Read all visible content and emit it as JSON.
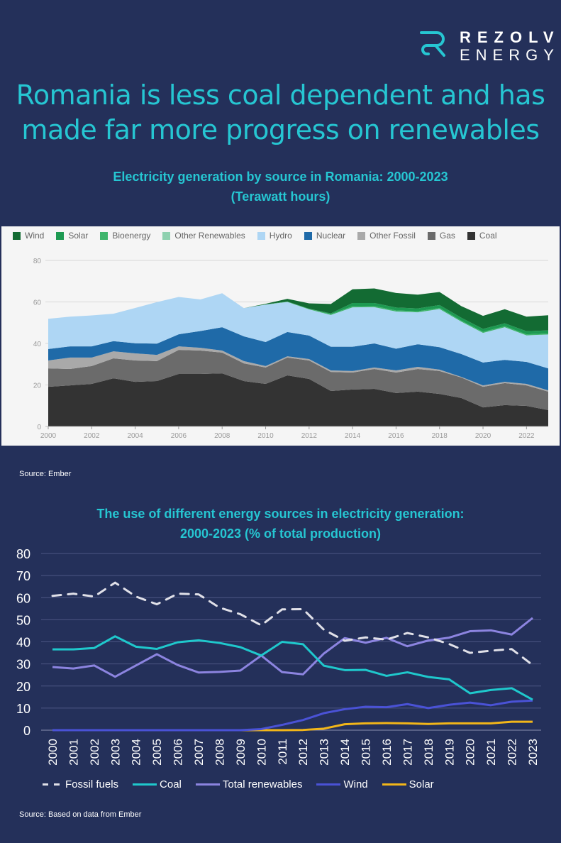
{
  "brand": {
    "name_line1": "REZOLV",
    "name_line2": "ENERGY",
    "accent": "#26c6d2"
  },
  "headline": {
    "line1": "Romania is less coal dependent and has",
    "line2": "made far more progress on renewables"
  },
  "chart1_title": {
    "line1": "Electricity generation by source in Romania: 2000-2023",
    "line2": "(Terawatt hours)"
  },
  "chart1_source": "Source: Ember",
  "chart2_title": {
    "line1": "The use of different energy sources in electricity generation:",
    "line2": "2000-2023 (% of total production)"
  },
  "chart2_source": "Source: Based on data from Ember",
  "chart_data": [
    {
      "type": "area",
      "stacked": true,
      "title": "Electricity generation by source in Romania: 2000-2023 (Terawatt hours)",
      "xlabel": "",
      "ylabel": "",
      "x": [
        2000,
        2001,
        2002,
        2003,
        2004,
        2005,
        2006,
        2007,
        2008,
        2009,
        2010,
        2011,
        2012,
        2013,
        2014,
        2015,
        2016,
        2017,
        2018,
        2019,
        2020,
        2021,
        2022,
        2023
      ],
      "x_tick_labels": [
        "2000",
        "2002",
        "2004",
        "2006",
        "2008",
        "2010",
        "2012",
        "2014",
        "2016",
        "2018",
        "2020",
        "2022"
      ],
      "y_ticks": [
        0,
        20,
        40,
        60,
        80
      ],
      "ylim": [
        0,
        80
      ],
      "grid": true,
      "legend_position": "top",
      "series": [
        {
          "name": "Coal",
          "color": "#333333",
          "values": [
            19.1,
            19.8,
            20.5,
            23.2,
            21.5,
            21.9,
            25.3,
            25.3,
            25.6,
            21.9,
            20.5,
            24.6,
            22.9,
            17.1,
            17.8,
            18.1,
            16.1,
            16.8,
            15.7,
            13.7,
            9.2,
            10.3,
            9.9,
            7.9
          ]
        },
        {
          "name": "Gas",
          "color": "#6b6b6b",
          "values": [
            8.9,
            7.9,
            8.6,
            9.6,
            10.3,
            9.6,
            11.6,
            11.3,
            10.0,
            8.5,
            7.9,
            8.6,
            8.9,
            9.2,
            8.2,
            9.6,
            9.9,
            10.9,
            11.0,
            9.9,
            9.9,
            10.6,
            9.9,
            8.9
          ]
        },
        {
          "name": "Other Fossil",
          "color": "#a9a9a9",
          "values": [
            3.8,
            5.5,
            4.1,
            3.4,
            3.4,
            3.0,
            1.7,
            1.3,
            1.0,
            1.1,
            0.7,
            0.6,
            0.7,
            0.7,
            0.7,
            0.7,
            1.0,
            1.0,
            0.7,
            0.3,
            0.7,
            0.6,
            0.7,
            0.6
          ]
        },
        {
          "name": "Nuclear",
          "color": "#1f6aa8",
          "values": [
            5.5,
            5.4,
            5.4,
            4.9,
            4.9,
            5.4,
            5.8,
            8.1,
            11.2,
            11.9,
            11.6,
            11.7,
            11.3,
            11.4,
            11.7,
            11.6,
            10.5,
            10.9,
            10.8,
            11.0,
            11.0,
            10.6,
            10.6,
            10.6
          ]
        },
        {
          "name": "Hydro",
          "color": "#aed6f4",
          "values": [
            14.6,
            14.3,
            14.9,
            13.2,
            17.0,
            20.0,
            18.0,
            15.2,
            16.4,
            13.6,
            18.0,
            14.5,
            12.6,
            15.3,
            19.0,
            17.5,
            17.9,
            15.4,
            18.4,
            15.6,
            14.3,
            15.7,
            12.8,
            16.3
          ]
        },
        {
          "name": "Other Renewables",
          "color": "#8fd1b0",
          "values": [
            0,
            0,
            0,
            0,
            0,
            0,
            0,
            0,
            0,
            0,
            0,
            0,
            0,
            0,
            0,
            0,
            0,
            0,
            0,
            0,
            0,
            0,
            0,
            0
          ]
        },
        {
          "name": "Bioenergy",
          "color": "#3fb56c",
          "values": [
            0,
            0,
            0,
            0,
            0,
            0,
            0,
            0,
            0,
            0,
            0.1,
            0.2,
            0.3,
            0.4,
            0.5,
            0.5,
            0.5,
            0.5,
            0.5,
            0.5,
            0.5,
            0.5,
            0.5,
            0.5
          ]
        },
        {
          "name": "Solar",
          "color": "#1d9a52",
          "values": [
            0,
            0,
            0,
            0,
            0,
            0,
            0,
            0,
            0,
            0,
            0,
            0,
            0,
            0.4,
            1.6,
            1.5,
            1.4,
            1.4,
            1.4,
            1.4,
            1.4,
            1.4,
            1.5,
            1.5
          ]
        },
        {
          "name": "Wind",
          "color": "#136b33",
          "values": [
            0,
            0,
            0,
            0,
            0,
            0,
            0,
            0,
            0,
            0,
            0.3,
            1.3,
            2.6,
            4.5,
            6.6,
            7.0,
            7.0,
            6.6,
            6.3,
            5.6,
            6.3,
            6.8,
            7.0,
            7.3
          ]
        }
      ]
    },
    {
      "type": "line",
      "title": "The use of different energy sources in electricity generation: 2000-2023 (% of total production)",
      "xlabel": "",
      "ylabel": "",
      "x": [
        2000,
        2001,
        2002,
        2003,
        2004,
        2005,
        2006,
        2007,
        2008,
        2009,
        2010,
        2011,
        2012,
        2013,
        2014,
        2015,
        2016,
        2017,
        2018,
        2019,
        2020,
        2021,
        2022,
        2023
      ],
      "y_ticks": [
        0,
        10,
        20,
        30,
        40,
        50,
        60,
        70,
        80
      ],
      "ylim": [
        0,
        80
      ],
      "grid": true,
      "legend_position": "bottom",
      "series": [
        {
          "name": "Fossil fuels",
          "color": "#e0e0e8",
          "dashed": true,
          "values": [
            60.8,
            61.8,
            60.5,
            66.8,
            60.5,
            57.0,
            61.8,
            61.5,
            55.5,
            52.5,
            47.5,
            54.7,
            54.8,
            45.5,
            40.5,
            42.0,
            41.0,
            44.0,
            42.0,
            39.0,
            35.0,
            36.0,
            36.7,
            29.5
          ]
        },
        {
          "name": "Coal",
          "color": "#1fc8cc",
          "dashed": false,
          "values": [
            36.6,
            36.6,
            37.2,
            42.5,
            37.8,
            36.8,
            39.8,
            40.7,
            39.5,
            37.6,
            33.8,
            40.0,
            38.9,
            29.2,
            27.2,
            27.3,
            24.6,
            26.2,
            24.1,
            23.0,
            16.7,
            18.2,
            19.0,
            13.8
          ]
        },
        {
          "name": "Total renewables",
          "color": "#8c84e0",
          "dashed": false,
          "values": [
            28.6,
            27.9,
            29.3,
            24.2,
            29.3,
            34.4,
            29.5,
            26.1,
            26.4,
            27.0,
            33.8,
            26.3,
            25.3,
            34.7,
            41.7,
            39.6,
            41.8,
            38.0,
            40.6,
            41.9,
            44.8,
            45.2,
            43.3,
            50.8
          ]
        },
        {
          "name": "Wind",
          "color": "#4a52d6",
          "dashed": false,
          "values": [
            0,
            0,
            0,
            0,
            0,
            0,
            0,
            0,
            0,
            0,
            0.5,
            2.4,
            4.6,
            7.7,
            9.5,
            10.6,
            10.4,
            11.8,
            10.0,
            11.5,
            12.5,
            11.3,
            12.9,
            13.4
          ]
        },
        {
          "name": "Solar",
          "color": "#f2b619",
          "dashed": false,
          "values": [
            0,
            0,
            0,
            0,
            0,
            0,
            0,
            0,
            0,
            0,
            0,
            0,
            0.1,
            0.7,
            2.7,
            3.1,
            3.2,
            3.1,
            2.8,
            3.1,
            3.1,
            3.1,
            3.8,
            3.8
          ]
        }
      ]
    }
  ]
}
